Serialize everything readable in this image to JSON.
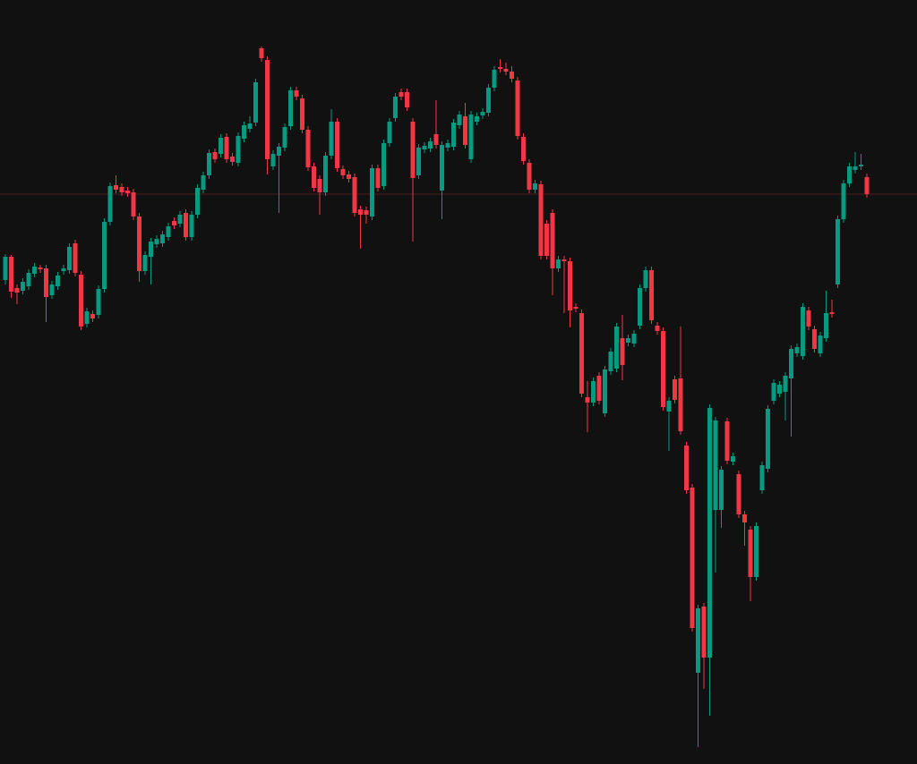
{
  "chart_data": {
    "type": "candlestick",
    "up_color": "#089981",
    "down_color": "#f23645",
    "background": "#111111",
    "price_line_color": "#4a1c21",
    "ylim": [
      0,
      854
    ],
    "open": [
      541,
      567,
      532,
      529,
      534,
      548,
      555,
      554,
      524,
      534,
      551,
      552,
      582,
      547,
      492,
      503,
      502,
      531,
      606,
      647,
      645,
      641,
      639,
      612,
      551,
      567,
      581,
      582,
      589,
      607,
      604,
      616,
      589,
      614,
      642,
      658,
      684,
      682,
      701,
      679,
      672,
      699,
      710,
      717,
      800,
      787,
      668,
      680,
      689,
      713,
      753,
      744,
      709,
      668,
      654,
      639,
      680,
      718,
      665,
      659,
      656,
      620,
      619,
      612,
      666,
      646,
      694,
      722,
      751,
      751,
      718,
      658,
      687,
      688,
      704,
      641,
      689,
      690,
      714,
      724,
      676,
      718,
      725,
      728,
      756,
      779,
      777,
      774,
      764,
      701,
      672,
      642,
      648,
      604,
      616,
      554,
      564,
      562,
      511,
      504,
      410,
      404,
      434,
      392,
      439,
      442,
      476,
      471,
      470,
      490,
      532,
      552,
      490,
      484,
      394,
      430,
      431,
      356,
      309,
      102,
      176,
      119,
      284,
      284,
      383,
      338,
      324,
      279,
      262,
      209,
      306,
      330,
      406,
      414,
      416,
      431,
      459,
      456,
      507,
      486,
      459,
      476,
      505,
      536,
      609,
      649,
      664,
      668,
      656
    ],
    "high": [
      570,
      569,
      536,
      543,
      553,
      560,
      558,
      558,
      540,
      550,
      558,
      582,
      586,
      551,
      510,
      507,
      535,
      610,
      650,
      658,
      649,
      645,
      643,
      616,
      573,
      588,
      591,
      596,
      605,
      611,
      618,
      620,
      618,
      648,
      662,
      687,
      688,
      704,
      705,
      683,
      706,
      718,
      724,
      766,
      802,
      791,
      686,
      694,
      716,
      757,
      757,
      748,
      713,
      672,
      658,
      684,
      732,
      722,
      669,
      663,
      660,
      624,
      623,
      670,
      670,
      698,
      722,
      750,
      755,
      755,
      722,
      693,
      695,
      700,
      742,
      696,
      698,
      721,
      730,
      739,
      730,
      728,
      733,
      760,
      780,
      788,
      784,
      780,
      768,
      705,
      676,
      653,
      652,
      608,
      620,
      568,
      568,
      566,
      515,
      508,
      428,
      432,
      438,
      445,
      465,
      493,
      502,
      480,
      485,
      536,
      556,
      556,
      494,
      488,
      410,
      434,
      489,
      360,
      313,
      178,
      180,
      402,
      388,
      333,
      387,
      348,
      328,
      283,
      266,
      270,
      338,
      401,
      430,
      428,
      438,
      468,
      470,
      515,
      511,
      490,
      483,
      529,
      519,
      613,
      653,
      672,
      684,
      682,
      660
    ],
    "low": [
      536,
      521,
      514,
      525,
      530,
      544,
      549,
      494,
      520,
      530,
      547,
      548,
      545,
      485,
      488,
      494,
      498,
      527,
      602,
      638,
      635,
      634,
      608,
      539,
      547,
      536,
      577,
      578,
      585,
      598,
      600,
      585,
      585,
      610,
      638,
      654,
      672,
      678,
      672,
      669,
      668,
      695,
      706,
      713,
      785,
      659,
      664,
      616,
      685,
      709,
      742,
      705,
      663,
      640,
      614,
      635,
      676,
      662,
      654,
      650,
      612,
      576,
      604,
      608,
      640,
      642,
      690,
      718,
      742,
      730,
      584,
      654,
      683,
      684,
      688,
      609,
      685,
      686,
      710,
      688,
      672,
      714,
      721,
      724,
      752,
      773,
      770,
      762,
      698,
      670,
      638,
      638,
      564,
      564,
      524,
      550,
      504,
      488,
      505,
      410,
      371,
      400,
      402,
      388,
      435,
      438,
      429,
      467,
      466,
      486,
      528,
      492,
      480,
      395,
      350,
      403,
      368,
      302,
      148,
      19,
      84,
      54,
      214,
      264,
      335,
      334,
      275,
      244,
      182,
      205,
      302,
      326,
      402,
      410,
      384,
      366,
      455,
      452,
      485,
      460,
      455,
      472,
      499,
      532,
      605,
      645,
      660,
      664,
      633
    ],
    "close": [
      567,
      528,
      527,
      539,
      549,
      556,
      553,
      522,
      536,
      546,
      554,
      578,
      549,
      489,
      506,
      498,
      531,
      606,
      646,
      642,
      639,
      638,
      612,
      551,
      569,
      584,
      587,
      592,
      601,
      602,
      614,
      589,
      614,
      644,
      658,
      683,
      676,
      700,
      676,
      673,
      702,
      714,
      716,
      762,
      789,
      676,
      682,
      690,
      712,
      753,
      746,
      709,
      667,
      644,
      639,
      680,
      718,
      666,
      658,
      654,
      616,
      614,
      614,
      666,
      644,
      694,
      718,
      746,
      746,
      734,
      655,
      689,
      691,
      696,
      692,
      692,
      694,
      717,
      726,
      692,
      726,
      724,
      729,
      756,
      776,
      777,
      774,
      766,
      702,
      674,
      642,
      649,
      568,
      568,
      554,
      564,
      562,
      507,
      509,
      414,
      404,
      428,
      406,
      441,
      461,
      489,
      446,
      476,
      481,
      532,
      552,
      496,
      484,
      399,
      406,
      407,
      372,
      306,
      152,
      174,
      119,
      398,
      384,
      329,
      339,
      344,
      279,
      270,
      209,
      266,
      334,
      397,
      426,
      424,
      434,
      464,
      466,
      511,
      489,
      464,
      479,
      504,
      503,
      609,
      649,
      668,
      668,
      670,
      637
    ]
  }
}
